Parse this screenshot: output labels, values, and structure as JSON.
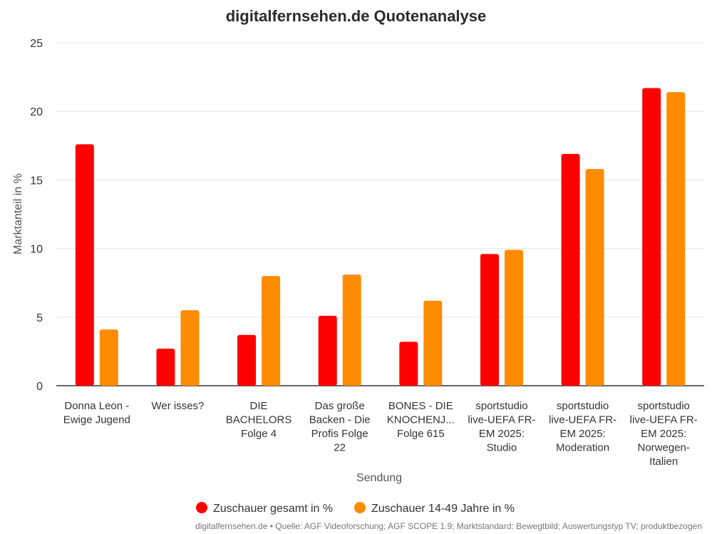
{
  "chart_data": {
    "type": "bar",
    "title": "digitalfernsehen.de Quotenanalyse",
    "xlabel": "Sendung",
    "ylabel": "Marktanteil in %",
    "ylim": [
      0,
      25
    ],
    "yticks": [
      0,
      5,
      10,
      15,
      20,
      25
    ],
    "grid": true,
    "legend_position": "bottom",
    "categories": [
      [
        "Donna Leon -",
        "Ewige Jugend"
      ],
      [
        "Wer isses?"
      ],
      [
        "DIE",
        "BACHELORS",
        "Folge 4"
      ],
      [
        "Das große",
        "Backen - Die",
        "Profis Folge",
        "22"
      ],
      [
        "BONES - DIE",
        "KNOCHENJ...",
        "Folge 615"
      ],
      [
        "sportstudio",
        "live-UEFA FR-",
        "EM 2025:",
        "Studio"
      ],
      [
        "sportstudio",
        "live-UEFA FR-",
        "EM 2025:",
        "Moderation"
      ],
      [
        "sportstudio",
        "live-UEFA FR-",
        "EM 2025:",
        "Norwegen-",
        "Italien"
      ]
    ],
    "series": [
      {
        "name": "Zuschauer gesamt in %",
        "color": "#ff0000",
        "values": [
          17.6,
          2.7,
          3.7,
          5.1,
          3.2,
          9.6,
          16.9,
          21.7
        ]
      },
      {
        "name": "Zuschauer 14-49 Jahre in %",
        "color": "#ff8c00",
        "values": [
          4.1,
          5.5,
          8.0,
          8.1,
          6.2,
          9.9,
          15.8,
          21.4
        ]
      }
    ],
    "credits": "digitalfernsehen.de • Quelle: AGF Videoforschung; AGF SCOPE 1.9; Marktstandard: Bewegtbild; Auswertungstyp TV; produktbezogen"
  }
}
